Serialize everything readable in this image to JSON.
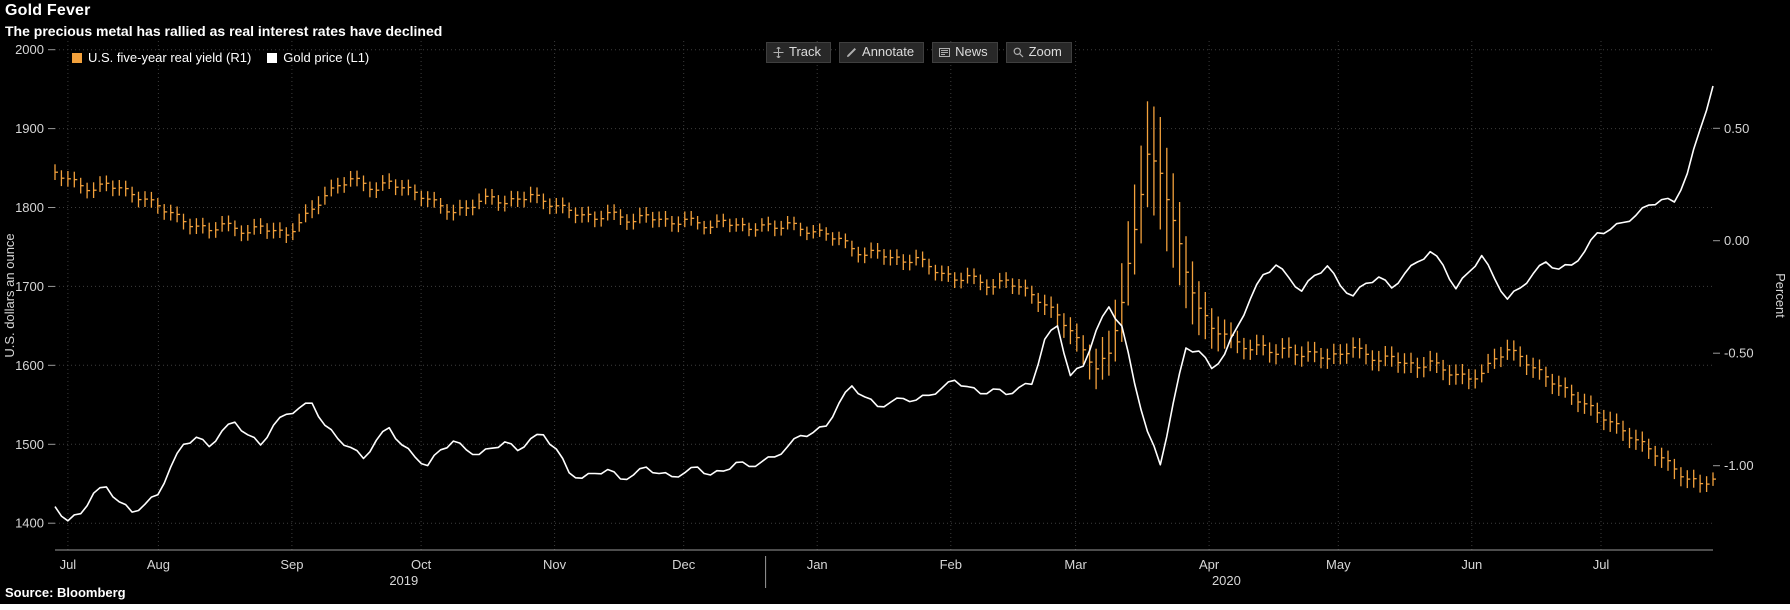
{
  "header": {
    "title": "Gold Fever",
    "subtitle": "The precious metal has rallied as real interest rates have declined"
  },
  "toolbar": {
    "buttons": [
      {
        "label": "Track",
        "icon": "track-crosshair-icon"
      },
      {
        "label": "Annotate",
        "icon": "annotate-pencil-icon"
      },
      {
        "label": "News",
        "icon": "news-icon"
      },
      {
        "label": "Zoom",
        "icon": "zoom-magnifier-icon"
      }
    ]
  },
  "legend": {
    "items": [
      {
        "label": "U.S. five-year real yield (R1)",
        "color": "#f2a13c"
      },
      {
        "label": "Gold price (L1)",
        "color": "#ffffff"
      }
    ]
  },
  "footer": {
    "source": "Source:  Bloomberg"
  },
  "colors": {
    "background": "#000000",
    "grid": "#3d3d3d",
    "axis_text": "#d6d6d6",
    "yield_series": "#f2a13c",
    "gold_series": "#ffffff"
  },
  "chart_data": {
    "type": "line",
    "title": "Gold Fever",
    "subtitle": "The precious metal has rallied as real interest rates have declined",
    "source": "Bloomberg",
    "x_axis": {
      "description": "time in days from early July 2019 to late July 2020",
      "t_max": 385,
      "month_ticks": [
        {
          "label": "Jul",
          "t": 3
        },
        {
          "label": "Aug",
          "t": 24
        },
        {
          "label": "Sep",
          "t": 55
        },
        {
          "label": "Oct",
          "t": 85
        },
        {
          "label": "Nov",
          "t": 116
        },
        {
          "label": "Dec",
          "t": 146
        },
        {
          "label": "Jan",
          "t": 177
        },
        {
          "label": "Feb",
          "t": 208
        },
        {
          "label": "Mar",
          "t": 237
        },
        {
          "label": "Apr",
          "t": 268
        },
        {
          "label": "May",
          "t": 298
        },
        {
          "label": "Jun",
          "t": 329
        },
        {
          "label": "Jul",
          "t": 359
        }
      ],
      "year_labels": [
        {
          "label": "2019",
          "t": 81
        },
        {
          "label": "2020",
          "t": 272
        }
      ],
      "year_divider_t": 165
    },
    "left_axis": {
      "title": "U.S. dollars an ounce",
      "min": 1366,
      "max": 2011,
      "ticks": [
        {
          "v": 2000,
          "label": "2000"
        },
        {
          "v": 1900,
          "label": "1900"
        },
        {
          "v": 1800,
          "label": "1800"
        },
        {
          "v": 1700,
          "label": "1700"
        },
        {
          "v": 1600,
          "label": "1600"
        },
        {
          "v": 1500,
          "label": "1500"
        },
        {
          "v": 1400,
          "label": "1400"
        }
      ]
    },
    "right_axis": {
      "title": "Percent",
      "min": -1.375,
      "max": 0.888,
      "ticks": [
        {
          "v": 0.5,
          "label": "0.50"
        },
        {
          "v": 0.0,
          "label": "0.00"
        },
        {
          "v": -0.5,
          "label": "-0.50"
        },
        {
          "v": -1.0,
          "label": "-1.00"
        }
      ]
    },
    "series": [
      {
        "name": "U.S. five-year real yield (R1)",
        "axis": "right",
        "color": "#f2a13c",
        "style": "hlc_bars",
        "unit": "percent",
        "bars_high_low": [
          [
            0.34,
            0.27
          ],
          [
            0.31,
            0.24
          ],
          [
            0.28,
            0.21
          ],
          [
            0.26,
            0.19
          ],
          [
            0.29,
            0.22
          ],
          [
            0.27,
            0.2
          ],
          [
            0.24,
            0.17
          ],
          [
            0.22,
            0.15
          ],
          [
            0.19,
            0.12
          ],
          [
            0.16,
            0.09
          ],
          [
            0.12,
            0.05
          ],
          [
            0.1,
            0.03
          ],
          [
            0.08,
            0.01
          ],
          [
            0.11,
            0.04
          ],
          [
            0.09,
            0.02
          ],
          [
            0.07,
            0.0
          ],
          [
            0.1,
            0.03
          ],
          [
            0.08,
            0.01
          ],
          [
            0.06,
            -0.01
          ],
          [
            0.12,
            0.04
          ],
          [
            0.18,
            0.1
          ],
          [
            0.24,
            0.16
          ],
          [
            0.28,
            0.21
          ],
          [
            0.31,
            0.24
          ],
          [
            0.29,
            0.22
          ],
          [
            0.26,
            0.19
          ],
          [
            0.3,
            0.23
          ],
          [
            0.27,
            0.2
          ],
          [
            0.25,
            0.18
          ],
          [
            0.22,
            0.15
          ],
          [
            0.19,
            0.12
          ],
          [
            0.16,
            0.09
          ],
          [
            0.18,
            0.11
          ],
          [
            0.21,
            0.14
          ],
          [
            0.23,
            0.16
          ],
          [
            0.2,
            0.13
          ],
          [
            0.22,
            0.15
          ],
          [
            0.24,
            0.17
          ],
          [
            0.21,
            0.14
          ],
          [
            0.19,
            0.12
          ],
          [
            0.17,
            0.1
          ],
          [
            0.15,
            0.08
          ],
          [
            0.13,
            0.06
          ],
          [
            0.16,
            0.09
          ],
          [
            0.14,
            0.07
          ],
          [
            0.12,
            0.05
          ],
          [
            0.15,
            0.08
          ],
          [
            0.13,
            0.06
          ],
          [
            0.11,
            0.04
          ],
          [
            0.13,
            0.06
          ],
          [
            0.11,
            0.05
          ],
          [
            0.09,
            0.03
          ],
          [
            0.12,
            0.06
          ],
          [
            0.1,
            0.04
          ],
          [
            0.08,
            0.02
          ],
          [
            0.1,
            0.04
          ],
          [
            0.09,
            0.02
          ],
          [
            0.11,
            0.05
          ],
          [
            0.08,
            0.02
          ],
          [
            0.07,
            0.01
          ],
          [
            0.06,
            0.0
          ],
          [
            0.04,
            -0.02
          ],
          [
            0.0,
            -0.07
          ],
          [
            -0.03,
            -0.1
          ],
          [
            -0.01,
            -0.08
          ],
          [
            -0.04,
            -0.11
          ],
          [
            -0.06,
            -0.13
          ],
          [
            -0.04,
            -0.11
          ],
          [
            -0.08,
            -0.15
          ],
          [
            -0.11,
            -0.18
          ],
          [
            -0.14,
            -0.21
          ],
          [
            -0.12,
            -0.19
          ],
          [
            -0.15,
            -0.22
          ],
          [
            -0.17,
            -0.24
          ],
          [
            -0.14,
            -0.21
          ],
          [
            -0.17,
            -0.24
          ],
          [
            -0.2,
            -0.28
          ],
          [
            -0.24,
            -0.33
          ],
          [
            -0.28,
            -0.38
          ],
          [
            -0.34,
            -0.46
          ],
          [
            -0.42,
            -0.55
          ],
          [
            -0.48,
            -0.66
          ],
          [
            -0.4,
            -0.6
          ],
          [
            -0.1,
            -0.45
          ],
          [
            0.25,
            -0.15
          ],
          [
            0.62,
            0.15
          ],
          [
            0.55,
            0.05
          ],
          [
            0.3,
            -0.12
          ],
          [
            0.02,
            -0.3
          ],
          [
            -0.18,
            -0.42
          ],
          [
            -0.3,
            -0.48
          ],
          [
            -0.35,
            -0.48
          ],
          [
            -0.4,
            -0.5
          ],
          [
            -0.44,
            -0.53
          ],
          [
            -0.42,
            -0.51
          ],
          [
            -0.46,
            -0.55
          ],
          [
            -0.43,
            -0.52
          ],
          [
            -0.47,
            -0.56
          ],
          [
            -0.45,
            -0.54
          ],
          [
            -0.48,
            -0.57
          ],
          [
            -0.46,
            -0.55
          ],
          [
            -0.43,
            -0.52
          ],
          [
            -0.46,
            -0.55
          ],
          [
            -0.49,
            -0.58
          ],
          [
            -0.47,
            -0.56
          ],
          [
            -0.5,
            -0.59
          ],
          [
            -0.52,
            -0.61
          ],
          [
            -0.49,
            -0.58
          ],
          [
            -0.53,
            -0.62
          ],
          [
            -0.55,
            -0.64
          ],
          [
            -0.57,
            -0.66
          ],
          [
            -0.55,
            -0.63
          ],
          [
            -0.48,
            -0.57
          ],
          [
            -0.44,
            -0.53
          ],
          [
            -0.47,
            -0.56
          ],
          [
            -0.52,
            -0.61
          ],
          [
            -0.56,
            -0.65
          ],
          [
            -0.6,
            -0.69
          ],
          [
            -0.64,
            -0.73
          ],
          [
            -0.68,
            -0.77
          ],
          [
            -0.72,
            -0.81
          ],
          [
            -0.76,
            -0.85
          ],
          [
            -0.8,
            -0.89
          ],
          [
            -0.84,
            -0.93
          ],
          [
            -0.88,
            -0.97
          ],
          [
            -0.92,
            -1.01
          ],
          [
            -0.97,
            -1.06
          ],
          [
            -1.02,
            -1.1
          ],
          [
            -1.04,
            -1.12
          ],
          [
            -1.03,
            -1.09
          ]
        ]
      },
      {
        "name": "Gold price (L1)",
        "axis": "left",
        "color": "#ffffff",
        "style": "line",
        "unit": "usd_per_ounce",
        "values": [
          1421,
          1403,
          1412,
          1438,
          1446,
          1427,
          1414,
          1424,
          1436,
          1471,
          1500,
          1509,
          1497,
          1517,
          1528,
          1512,
          1499,
          1524,
          1538,
          1546,
          1552,
          1524,
          1507,
          1496,
          1482,
          1505,
          1521,
          1499,
          1484,
          1473,
          1493,
          1504,
          1493,
          1487,
          1495,
          1503,
          1492,
          1507,
          1512,
          1494,
          1464,
          1457,
          1463,
          1468,
          1456,
          1461,
          1471,
          1463,
          1459,
          1464,
          1471,
          1461,
          1466,
          1477,
          1472,
          1478,
          1484,
          1497,
          1511,
          1515,
          1523,
          1552,
          1574,
          1560,
          1548,
          1553,
          1558,
          1556,
          1562,
          1571,
          1581,
          1573,
          1564,
          1570,
          1563,
          1572,
          1576,
          1633,
          1650,
          1587,
          1599,
          1644,
          1674,
          1650,
          1577,
          1516,
          1474,
          1552,
          1622,
          1618,
          1596,
          1614,
          1649,
          1684,
          1715,
          1727,
          1711,
          1694,
          1714,
          1726,
          1701,
          1688,
          1704,
          1712,
          1698,
          1716,
          1731,
          1744,
          1727,
          1697,
          1718,
          1739,
          1710,
          1684,
          1698,
          1716,
          1731,
          1722,
          1727,
          1744,
          1768,
          1772,
          1781,
          1790,
          1803,
          1810,
          1807,
          1843,
          1899,
          1954
        ]
      }
    ]
  }
}
